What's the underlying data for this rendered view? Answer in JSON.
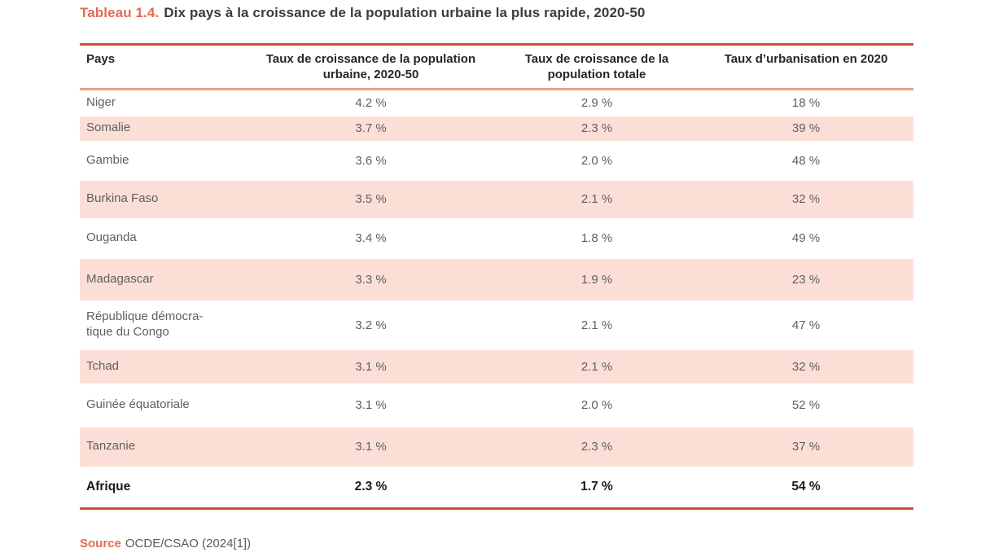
{
  "page": {
    "title_label": "Tableau 1.4.",
    "title_text": "Dix pays à la croissance de la population urbaine la plus rapide, 2020-50",
    "source_label": "Source",
    "source_text": "OCDE/CSAO (2024[1])"
  },
  "table": {
    "headers": {
      "pays": "Pays",
      "urbaine": "Taux de croissance de la population urbaine, 2020-50",
      "totale": "Taux de croissance de la population totale",
      "urbanisation": "Taux d’urbanisation en 2020"
    },
    "rows": [
      {
        "pays": "Niger",
        "urbaine": "4.2 %",
        "totale": "2.9 %",
        "urbanisation": "18 %"
      },
      {
        "pays": "Somalie",
        "urbaine": "3.7 %",
        "totale": "2.3 %",
        "urbanisation": "39 %"
      },
      {
        "pays": "Gambie",
        "urbaine": "3.6 %",
        "totale": "2.0 %",
        "urbanisation": "48 %"
      },
      {
        "pays": "Burkina Faso",
        "urbaine": "3.5 %",
        "totale": "2.1 %",
        "urbanisation": "32 %"
      },
      {
        "pays": "Ouganda",
        "urbaine": "3.4 %",
        "totale": "1.8 %",
        "urbanisation": "49 %"
      },
      {
        "pays": "Madagascar",
        "urbaine": "3.3 %",
        "totale": "1.9 %",
        "urbanisation": "23 %"
      },
      {
        "pays": "République démocra-tique du Congo",
        "urbaine": "3.2 %",
        "totale": "2.1 %",
        "urbanisation": "47 %"
      },
      {
        "pays": "Tchad",
        "urbaine": "3.1 %",
        "totale": "2.1 %",
        "urbanisation": "32 %"
      },
      {
        "pays": "Guinée équatoriale",
        "urbaine": "3.1 %",
        "totale": "2.0 %",
        "urbanisation": "52 %"
      },
      {
        "pays": "Tanzanie",
        "urbaine": "3.1 %",
        "totale": "2.3 %",
        "urbanisation": "37 %"
      },
      {
        "pays": "Afrique",
        "urbaine": "2.3 %",
        "totale": "1.7 %",
        "urbanisation": "54 %"
      }
    ]
  },
  "colors": {
    "accent_orange": "#cf5330",
    "separator_salmon": "#eb9d85",
    "row_pink": "#fbdfd7",
    "title_salmon": "#e36c50",
    "text_gray": "#5f5f5f",
    "text_dark": "#262626"
  }
}
